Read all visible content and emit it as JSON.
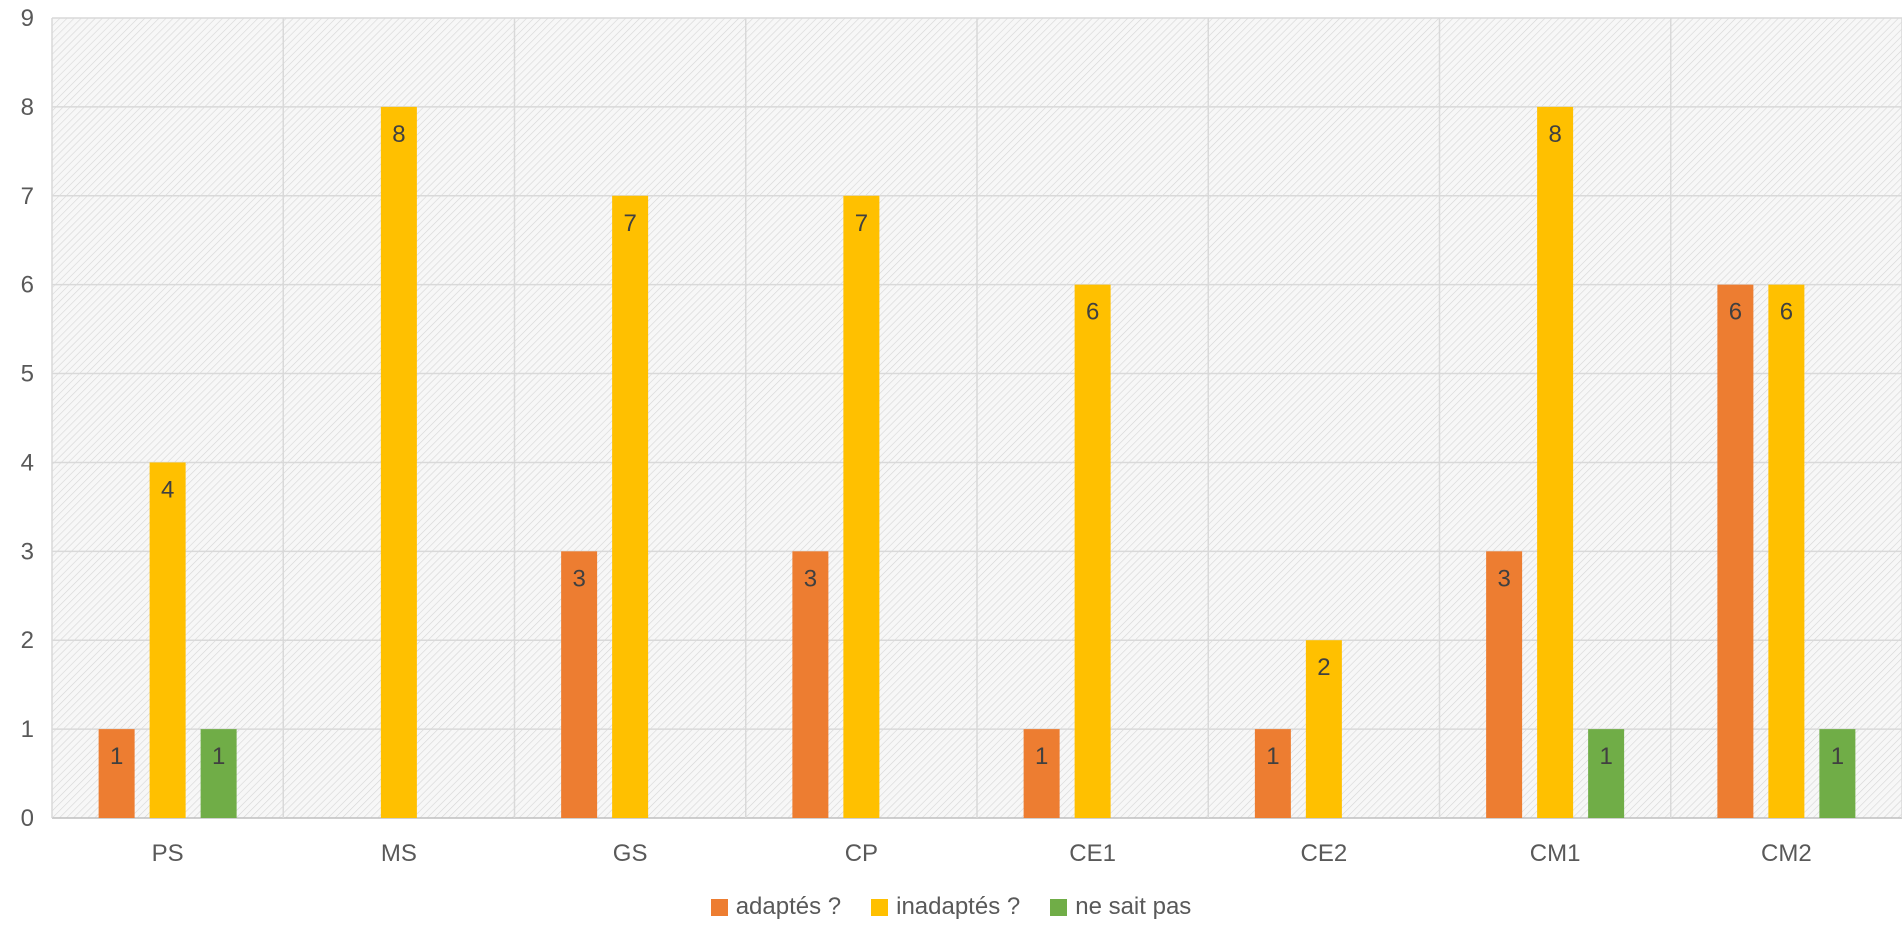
{
  "chart_data": {
    "type": "bar",
    "categories": [
      "PS",
      "MS",
      "GS",
      "CP",
      "CE1",
      "CE2",
      "CM1",
      "CM2"
    ],
    "series": [
      {
        "name": "adaptés ?",
        "color": "#ED7D31",
        "values": [
          1,
          0,
          3,
          3,
          1,
          1,
          3,
          6
        ]
      },
      {
        "name": "inadaptés ?",
        "color": "#FFC000",
        "values": [
          4,
          8,
          7,
          7,
          6,
          2,
          8,
          6
        ]
      },
      {
        "name": "ne sait pas",
        "color": "#70AD47",
        "values": [
          1,
          0,
          0,
          0,
          0,
          0,
          1,
          1
        ]
      }
    ],
    "ylim": [
      0,
      9
    ],
    "yticks": [
      "0",
      "1",
      "2",
      "3",
      "4",
      "5",
      "6",
      "7",
      "8",
      "9"
    ],
    "grid": true,
    "legend_position": "bottom",
    "title": "",
    "xlabel": "",
    "ylabel": ""
  }
}
